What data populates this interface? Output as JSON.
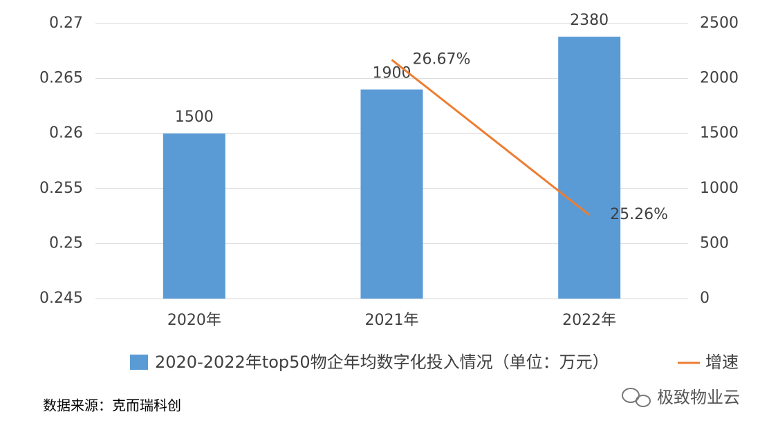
{
  "chart_data": {
    "type": "bar",
    "categories": [
      "2020年",
      "2021年",
      "2022年"
    ],
    "series": [
      {
        "name": "2020-2022年top50物企年均数字化投入情况（单位：万元）",
        "color": "#5b9bd5",
        "values": [
          1500,
          1900,
          2380
        ],
        "axis": "y2",
        "type": "bar"
      },
      {
        "name": "增速",
        "color": "#ed7d31",
        "values": [
          null,
          0.2667,
          0.2526
        ],
        "value_labels": [
          null,
          "26.67%",
          "25.26%"
        ],
        "type": "line"
      }
    ],
    "ylim": [
      0.245,
      0.27
    ],
    "yticks": [
      0.245,
      0.25,
      0.255,
      0.26,
      0.265,
      0.27
    ],
    "y2lim": [
      0,
      2500
    ],
    "y2ticks": [
      0,
      500,
      1000,
      1500,
      2000,
      2500
    ],
    "grid": true,
    "legend": "bottom",
    "source": "数据来源：克而瑞科创",
    "watermark": "极致物业云"
  }
}
